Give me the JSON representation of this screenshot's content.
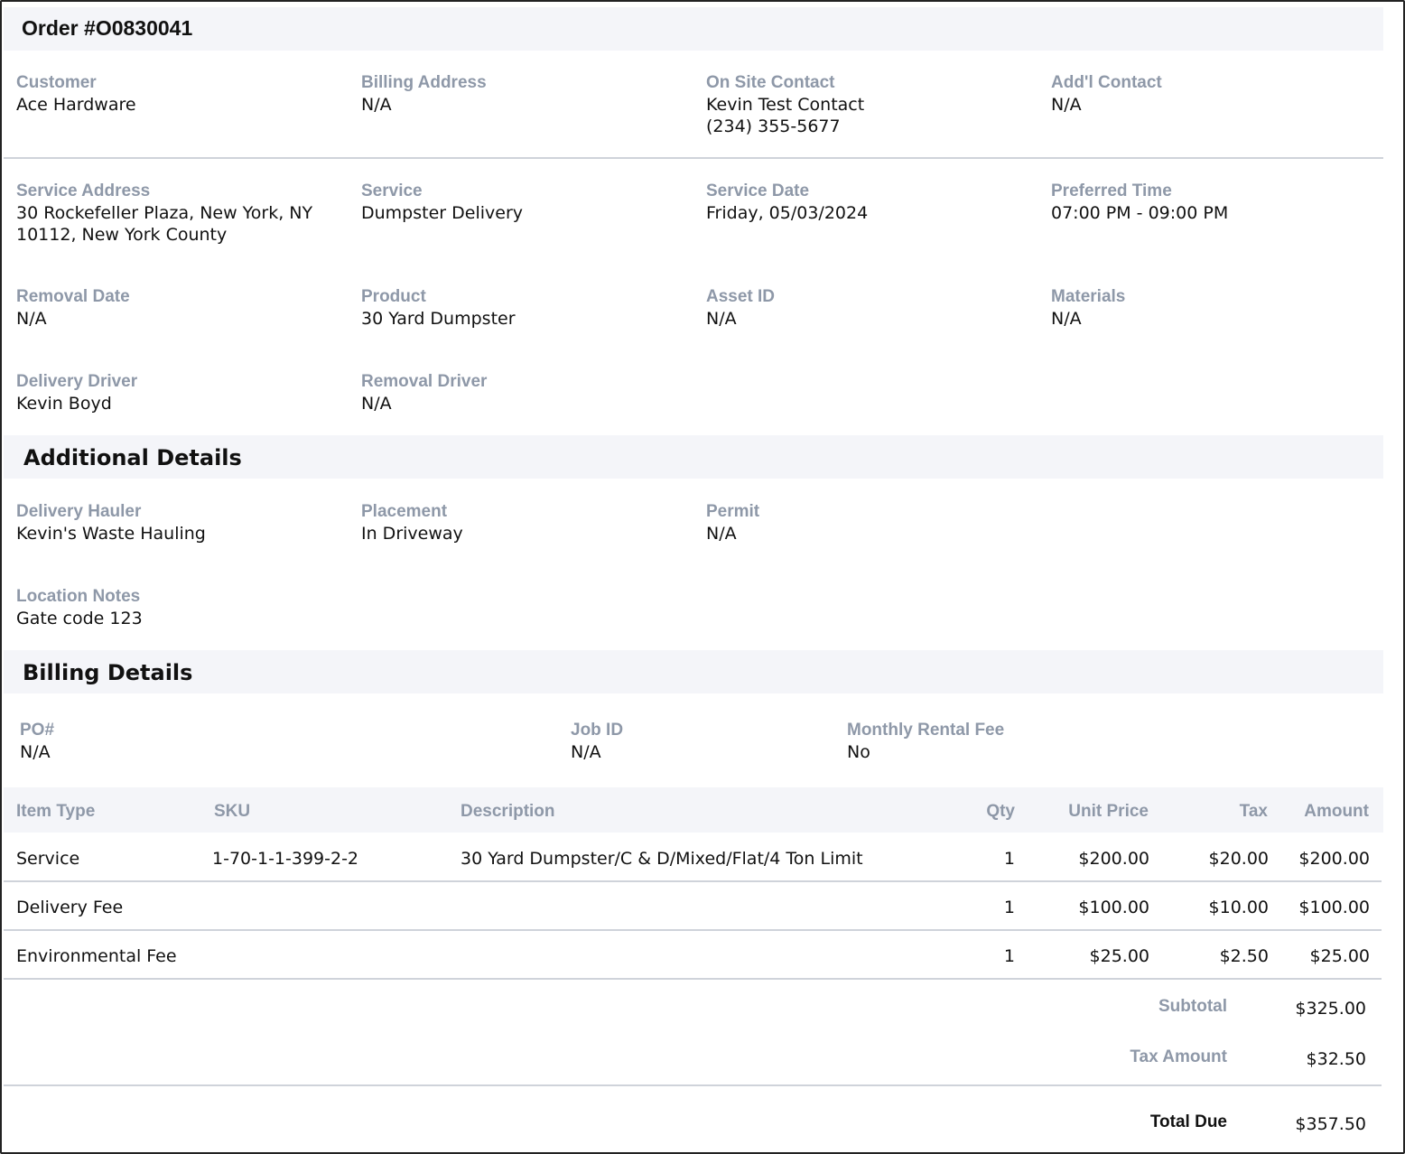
{
  "order": {
    "title": "Order #O0830041"
  },
  "summary": {
    "customer": {
      "label": "Customer",
      "value": "Ace Hardware"
    },
    "billing_address": {
      "label": "Billing Address",
      "value": "N/A"
    },
    "on_site_contact": {
      "label": "On Site Contact",
      "value": "Kevin Test Contact\n(234) 355-5677"
    },
    "addl_contact": {
      "label": "Add'l Contact",
      "value": "N/A"
    },
    "service_address": {
      "label": "Service Address",
      "value": "30 Rockefeller Plaza, New York, NY\n10112, New York County"
    },
    "service": {
      "label": "Service",
      "value": "Dumpster Delivery"
    },
    "service_date": {
      "label": "Service Date",
      "value": "Friday, 05/03/2024"
    },
    "preferred_time": {
      "label": "Preferred Time",
      "value": "07:00 PM - 09:00 PM"
    },
    "removal_date": {
      "label": "Removal Date",
      "value": "N/A"
    },
    "product": {
      "label": "Product",
      "value": "30 Yard Dumpster"
    },
    "asset_id": {
      "label": "Asset ID",
      "value": "N/A"
    },
    "materials": {
      "label": "Materials",
      "value": "N/A"
    },
    "delivery_driver": {
      "label": "Delivery Driver",
      "value": "Kevin Boyd"
    },
    "removal_driver": {
      "label": "Removal Driver",
      "value": "N/A"
    }
  },
  "additional": {
    "title": "Additional Details",
    "delivery_hauler": {
      "label": "Delivery Hauler",
      "value": "Kevin's Waste Hauling"
    },
    "placement": {
      "label": "Placement",
      "value": "In Driveway"
    },
    "permit": {
      "label": "Permit",
      "value": "N/A"
    },
    "location_notes": {
      "label": "Location Notes",
      "value": "Gate code 123"
    }
  },
  "billing": {
    "title": "Billing Details",
    "po": {
      "label": "PO#",
      "value": "N/A"
    },
    "job_id": {
      "label": "Job ID",
      "value": "N/A"
    },
    "monthly_rental_fee": {
      "label": "Monthly Rental Fee",
      "value": "No"
    }
  },
  "items": {
    "headers": [
      "Item Type",
      "SKU",
      "Description",
      "Qty",
      "Unit Price",
      "Tax",
      "Amount"
    ],
    "rows": [
      [
        "Service",
        "1-70-1-1-399-2-2",
        "30 Yard Dumpster/C & D/Mixed/Flat/4 Ton Limit",
        "1",
        "$200.00",
        "$20.00",
        "$200.00"
      ],
      [
        "Delivery Fee",
        "",
        "",
        "1",
        "$100.00",
        "$10.00",
        "$100.00"
      ],
      [
        "Environmental Fee",
        "",
        "",
        "1",
        "$25.00",
        "$2.50",
        "$25.00"
      ]
    ]
  },
  "totals": {
    "subtotal_label": "Subtotal",
    "subtotal_value": "$325.00",
    "tax_label": "Tax Amount",
    "tax_value": "$32.50",
    "total_label": "Total Due",
    "total_value": "$357.50"
  }
}
